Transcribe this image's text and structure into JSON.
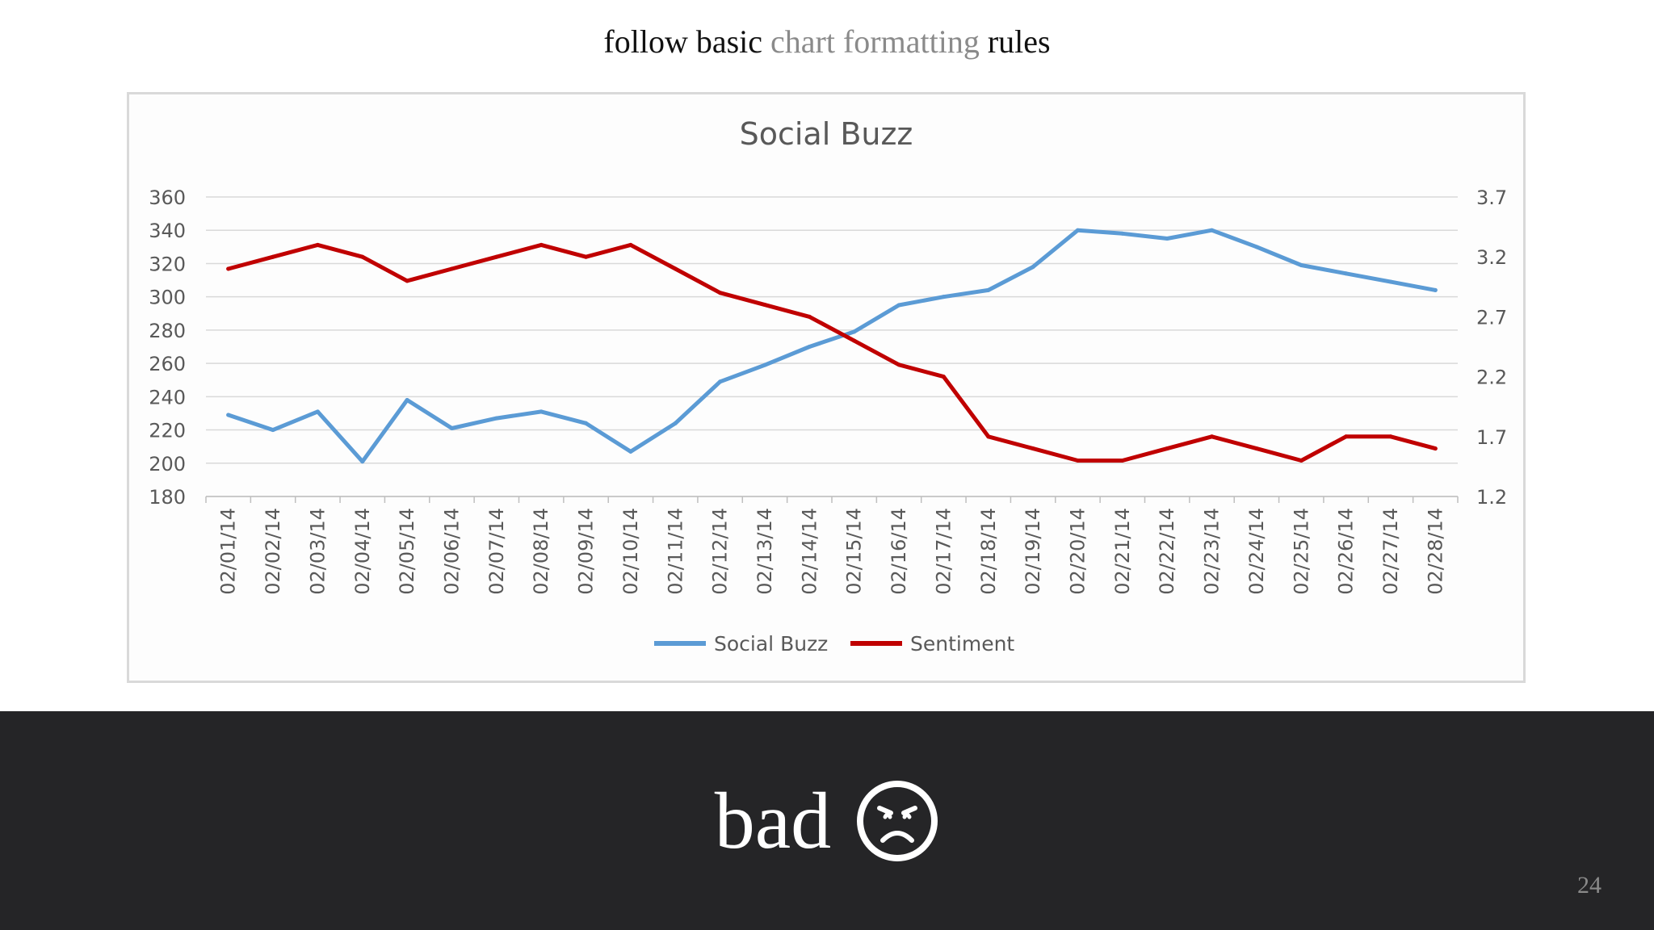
{
  "slide": {
    "title_prefix": "follow basic ",
    "title_highlight": "chart formatting",
    "title_suffix": " rules",
    "verdict": "bad",
    "verdict_icon": "sad-face-icon",
    "page_number": "24"
  },
  "colors": {
    "title_highlight": "#8a8a8a",
    "band_background": "#252527",
    "social_buzz_line": "#5b9bd5",
    "sentiment_line": "#c00000",
    "gridline": "#d9d9d9"
  },
  "chart_data": {
    "type": "line",
    "title": "Social Buzz",
    "x": [
      "02/01/14",
      "02/02/14",
      "02/03/14",
      "02/04/14",
      "02/05/14",
      "02/06/14",
      "02/07/14",
      "02/08/14",
      "02/09/14",
      "02/10/14",
      "02/11/14",
      "02/12/14",
      "02/13/14",
      "02/14/14",
      "02/15/14",
      "02/16/14",
      "02/17/14",
      "02/18/14",
      "02/19/14",
      "02/20/14",
      "02/21/14",
      "02/22/14",
      "02/23/14",
      "02/24/14",
      "02/25/14",
      "02/26/14",
      "02/27/14",
      "02/28/14"
    ],
    "y_left": {
      "ylim": [
        180,
        360
      ],
      "ticks": [
        "360",
        "340",
        "320",
        "300",
        "280",
        "260",
        "240",
        "220",
        "200",
        "180"
      ]
    },
    "y_right": {
      "ylim": [
        1.2,
        3.7
      ],
      "ticks": [
        "3.7",
        "3.2",
        "2.7",
        "2.2",
        "1.7",
        "1.2"
      ]
    },
    "series": [
      {
        "name": "Social Buzz",
        "axis": "left",
        "color": "#5b9bd5",
        "values": [
          229,
          220,
          231,
          201,
          238,
          221,
          227,
          231,
          224,
          207,
          224,
          249,
          259,
          270,
          279,
          295,
          300,
          304,
          318,
          340,
          338,
          335,
          340,
          330,
          319,
          314,
          309,
          304
        ]
      },
      {
        "name": "Sentiment",
        "axis": "right",
        "color": "#c00000",
        "values": [
          3.1,
          3.2,
          3.3,
          3.2,
          3.0,
          3.1,
          3.2,
          3.3,
          3.2,
          3.3,
          3.1,
          2.9,
          2.8,
          2.7,
          2.5,
          2.3,
          2.2,
          1.7,
          1.6,
          1.5,
          1.5,
          1.6,
          1.7,
          1.6,
          1.5,
          1.7,
          1.7,
          1.6
        ]
      }
    ],
    "legend": "bottom",
    "grid": true
  }
}
